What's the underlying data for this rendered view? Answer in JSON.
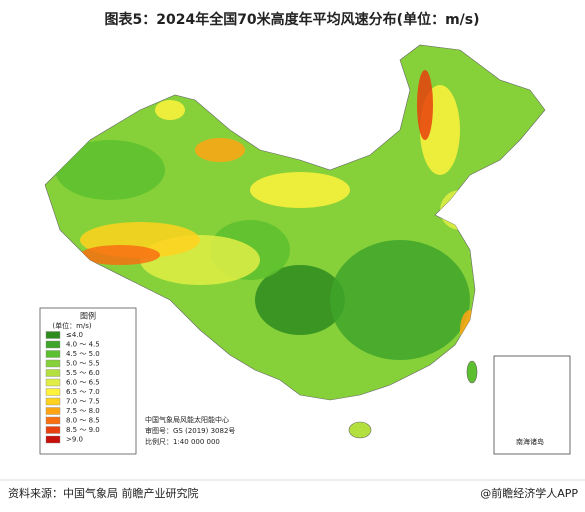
{
  "title": "图表5：2024年全国70米高度年平均风速分布(单位：m/s)",
  "legend": {
    "title": "图例",
    "unit": "(单位：m/s)",
    "items": [
      {
        "label": "≤4.0",
        "color": "#2e8b1e"
      },
      {
        "label": "4.0 ～ 4.5",
        "color": "#3fa52a"
      },
      {
        "label": "4.5 ～ 5.0",
        "color": "#5cbf2f"
      },
      {
        "label": "5.0 ～ 5.5",
        "color": "#86d13a"
      },
      {
        "label": "5.5 ～ 6.0",
        "color": "#b4e03f"
      },
      {
        "label": "6.0 ～ 6.5",
        "color": "#e0ee45"
      },
      {
        "label": "6.5 ～ 7.0",
        "color": "#fff23c"
      },
      {
        "label": "7.0 ～ 7.5",
        "color": "#ffd21f"
      },
      {
        "label": "7.5 ～ 8.0",
        "color": "#ffa514"
      },
      {
        "label": "8.0 ～ 8.5",
        "color": "#f77012"
      },
      {
        "label": "8.5 ～ 9.0",
        "color": "#e8400e"
      },
      {
        "label": ">9.0",
        "color": "#c8100a"
      }
    ]
  },
  "credits": [
    "中国气象局风能太阳能中心",
    "审图号：GS (2019) 3082号",
    "比例尺：1:40 000 000"
  ],
  "inset_label": "南海诸岛",
  "source": "资料来源：中国气象局 前瞻产业研究院",
  "brand": "@前瞻经济学人APP"
}
